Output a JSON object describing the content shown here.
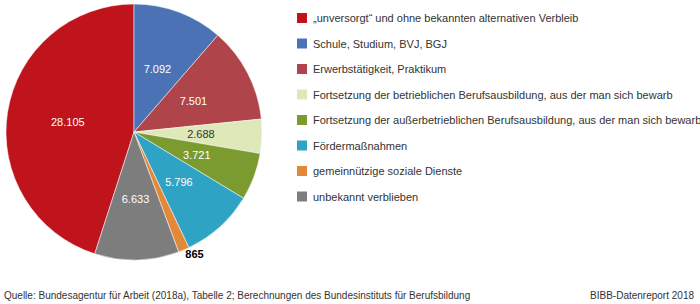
{
  "chart_data": {
    "type": "pie",
    "categories": [
      "„unversorgt“ und ohne bekannten alternativen Verbleib",
      "Schule, Studium, BVJ, BGJ",
      "Erwerbstätigkeit, Praktikum",
      "Fortsetzung der betrieblichen Berufsausbildung, aus der man sich bewarb",
      "Fortsetzung der außerbetrieblichen Berufsausbildung, aus der man sich bewarb",
      "Fördermaßnahmen",
      "gemeinnützige soziale Dienste",
      "unbekannt verblieben"
    ],
    "values": [
      28105,
      7092,
      7501,
      2688,
      3721,
      5796,
      865,
      6633
    ],
    "value_labels": [
      "28.105",
      "7.092",
      "7.501",
      "2.688",
      "3.721",
      "5.796",
      "865",
      "6.633"
    ],
    "colors": [
      "#c0141c",
      "#4a72b5",
      "#b0444b",
      "#dfe8b8",
      "#7b9b30",
      "#2fa3c3",
      "#e28839",
      "#7d7d7d"
    ],
    "data_labels": true,
    "legend": "right",
    "annotations": [
      "Quelle: Bundesagentur für Arbeit (2018a), Tabelle 2; Berechnungen des Bundesinstituts für Berufsbildung",
      "BIBB-Datenreport 2018"
    ]
  }
}
